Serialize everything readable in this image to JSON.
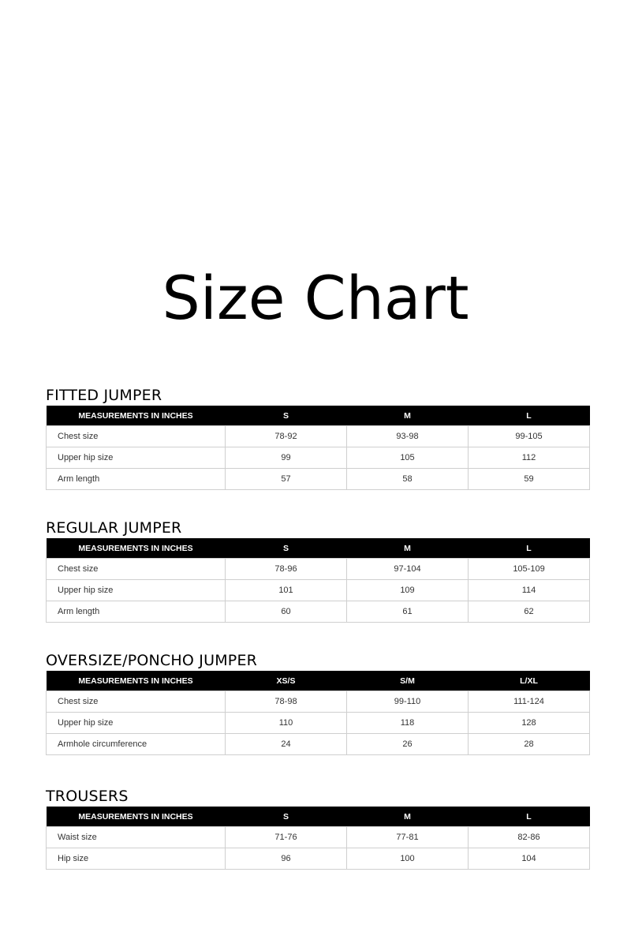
{
  "title": "Size Chart",
  "sections": [
    {
      "heading": "FITTED JUMPER",
      "columns": [
        "MEASUREMENTS IN INCHES",
        "S",
        "M",
        "L"
      ],
      "rows": [
        [
          "Chest size",
          "78-92",
          "93-98",
          "99-105"
        ],
        [
          "Upper hip size",
          "99",
          "105",
          "112"
        ],
        [
          "Arm length",
          "57",
          "58",
          "59"
        ]
      ]
    },
    {
      "heading": "REGULAR JUMPER",
      "columns": [
        "MEASUREMENTS IN INCHES",
        "S",
        "M",
        "L"
      ],
      "rows": [
        [
          "Chest size",
          "78-96",
          "97-104",
          "105-109"
        ],
        [
          "Upper hip size",
          "101",
          "109",
          "114"
        ],
        [
          "Arm length",
          "60",
          "61",
          "62"
        ]
      ]
    },
    {
      "heading": "OVERSIZE/PONCHO JUMPER",
      "columns": [
        "MEASUREMENTS IN INCHES",
        "XS/S",
        "S/M",
        "L/XL"
      ],
      "rows": [
        [
          "Chest size",
          "78-98",
          "99-110",
          "111-124"
        ],
        [
          "Upper hip size",
          "110",
          "118",
          "128"
        ],
        [
          "Armhole circumference",
          "24",
          "26",
          "28"
        ]
      ]
    },
    {
      "heading": "TROUSERS",
      "columns": [
        "MEASUREMENTS IN INCHES",
        "S",
        "M",
        "L"
      ],
      "rows": [
        [
          "Waist size",
          "71-76",
          "77-81",
          "82-86"
        ],
        [
          "Hip size",
          "96",
          "100",
          "104"
        ]
      ]
    }
  ]
}
